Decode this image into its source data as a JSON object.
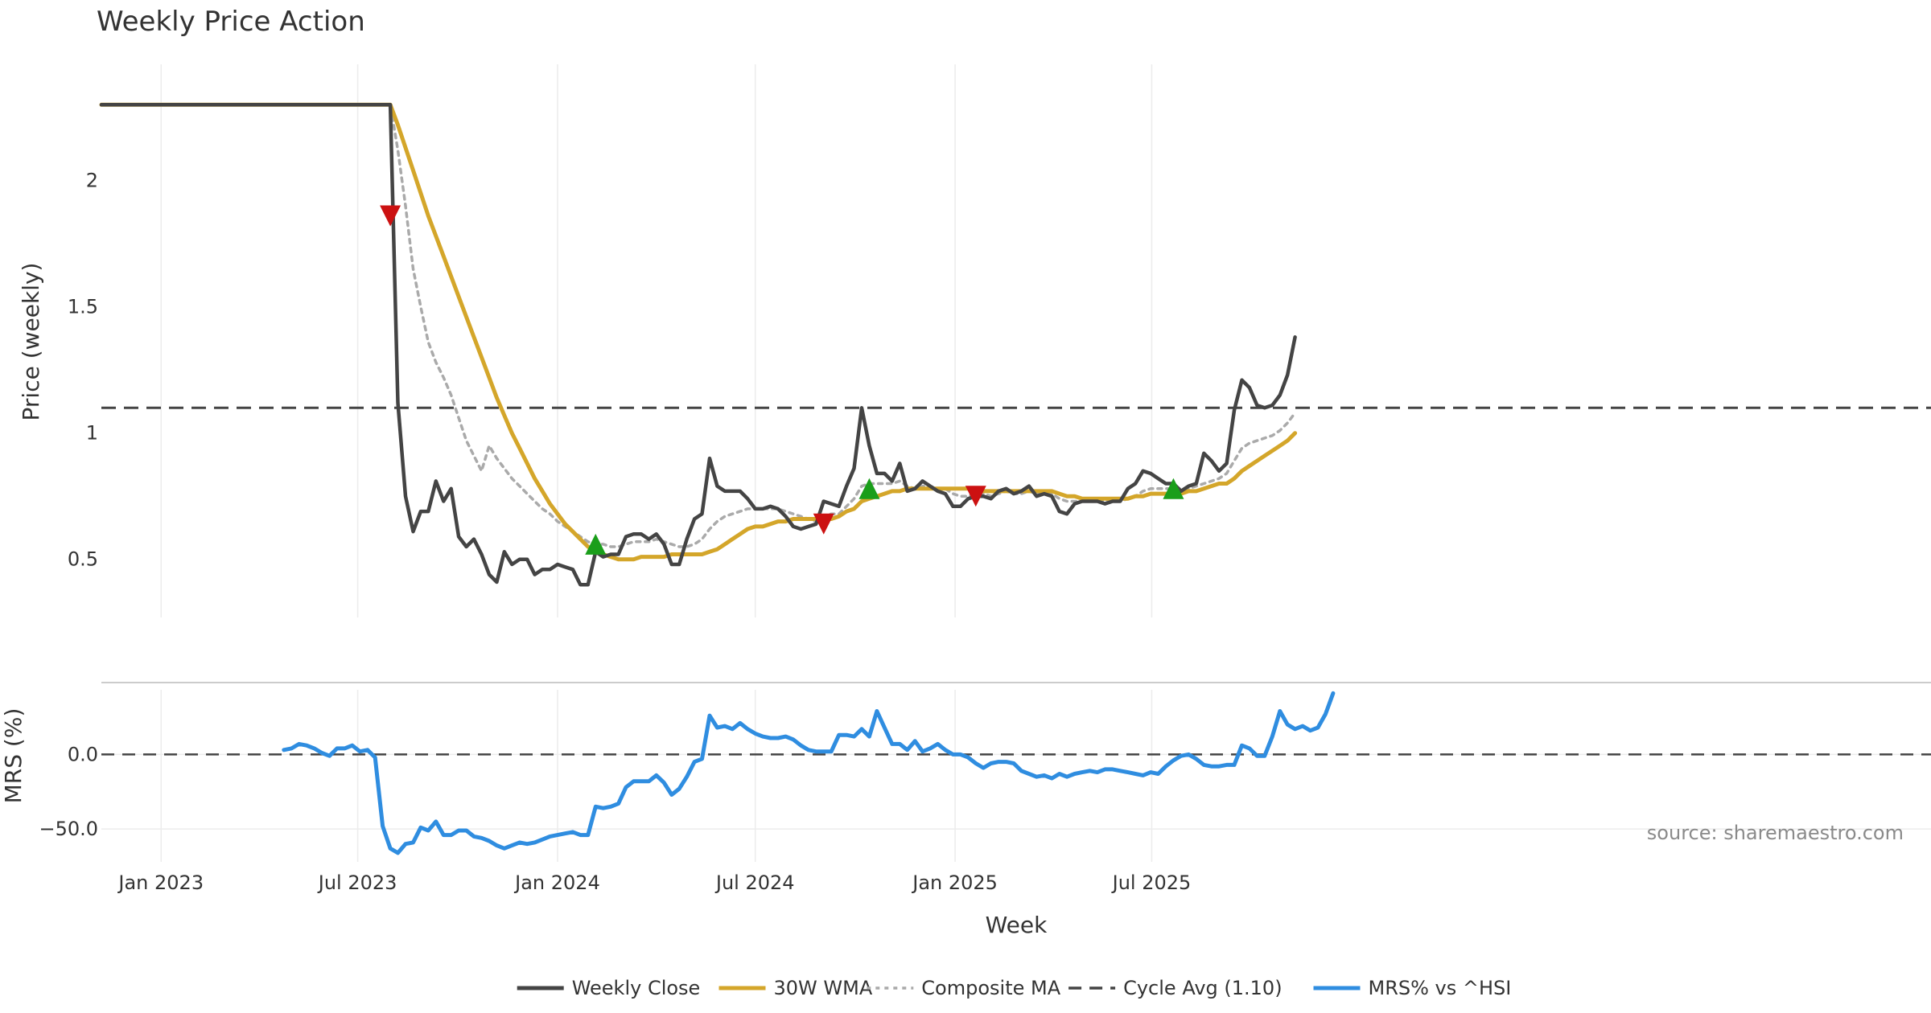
{
  "chart_data": [
    {
      "type": "line",
      "title": "Weekly Price Action",
      "ylabel": "Price (weekly)",
      "xlabel": "Week",
      "x_start": "2022-11-07",
      "x_step_days": 7,
      "ylim": [
        0.27,
        2.46
      ],
      "yticks": [
        0.5,
        1,
        1.5,
        2
      ],
      "ytick_labels": [
        "0.5",
        "1",
        "1.5",
        "2"
      ],
      "xticks": [
        {
          "date": "2023-01-01",
          "label": "Jan 2023"
        },
        {
          "date": "2023-07-01",
          "label": "Jul 2023"
        },
        {
          "date": "2024-01-01",
          "label": "Jan 2024"
        },
        {
          "date": "2024-07-01",
          "label": "Jul 2024"
        },
        {
          "date": "2025-01-01",
          "label": "Jan 2025"
        },
        {
          "date": "2025-07-01",
          "label": "Jul 2025"
        }
      ],
      "grid": true,
      "reference_line": {
        "name": "Cycle Avg (1.10)",
        "value": 1.1
      },
      "series": [
        {
          "name": "Weekly Close",
          "color": "#444444",
          "values": [
            2.3,
            2.3,
            2.3,
            2.3,
            2.3,
            2.3,
            2.3,
            2.3,
            2.3,
            2.3,
            2.3,
            2.3,
            2.3,
            2.3,
            2.3,
            2.3,
            2.3,
            2.3,
            2.3,
            2.3,
            2.3,
            2.3,
            2.3,
            2.3,
            2.3,
            2.3,
            2.3,
            2.3,
            2.3,
            2.3,
            2.3,
            2.3,
            2.3,
            2.3,
            2.3,
            2.3,
            2.3,
            2.3,
            2.3,
            1.12,
            0.75,
            0.61,
            0.69,
            0.69,
            0.81,
            0.73,
            0.78,
            0.59,
            0.55,
            0.58,
            0.52,
            0.44,
            0.41,
            0.53,
            0.48,
            0.5,
            0.5,
            0.44,
            0.46,
            0.46,
            0.48,
            0.47,
            0.46,
            0.4,
            0.4,
            0.53,
            0.51,
            0.52,
            0.52,
            0.59,
            0.6,
            0.6,
            0.58,
            0.6,
            0.56,
            0.48,
            0.48,
            0.58,
            0.66,
            0.68,
            0.9,
            0.79,
            0.77,
            0.77,
            0.77,
            0.74,
            0.7,
            0.7,
            0.71,
            0.7,
            0.67,
            0.63,
            0.62,
            0.63,
            0.64,
            0.73,
            0.72,
            0.71,
            0.79,
            0.86,
            1.1,
            0.95,
            0.84,
            0.84,
            0.81,
            0.88,
            0.77,
            0.78,
            0.81,
            0.79,
            0.77,
            0.76,
            0.71,
            0.71,
            0.74,
            0.75,
            0.75,
            0.74,
            0.77,
            0.78,
            0.76,
            0.77,
            0.79,
            0.75,
            0.76,
            0.75,
            0.69,
            0.68,
            0.72,
            0.73,
            0.73,
            0.73,
            0.72,
            0.73,
            0.73,
            0.78,
            0.8,
            0.85,
            0.84,
            0.82,
            0.8,
            0.8,
            0.77,
            0.79,
            0.8,
            0.92,
            0.89,
            0.85,
            0.88,
            1.09,
            1.21,
            1.18,
            1.11,
            1.1,
            1.11,
            1.15,
            1.23,
            1.38
          ]
        },
        {
          "name": "30W WMA",
          "color": "#d4a62a",
          "values": [
            2.3,
            2.3,
            2.3,
            2.3,
            2.3,
            2.3,
            2.3,
            2.3,
            2.3,
            2.3,
            2.3,
            2.3,
            2.3,
            2.3,
            2.3,
            2.3,
            2.3,
            2.3,
            2.3,
            2.3,
            2.3,
            2.3,
            2.3,
            2.3,
            2.3,
            2.3,
            2.3,
            2.3,
            2.3,
            2.3,
            2.3,
            2.3,
            2.3,
            2.3,
            2.3,
            2.3,
            2.3,
            2.3,
            2.3,
            2.22,
            2.13,
            2.04,
            1.95,
            1.86,
            1.78,
            1.7,
            1.62,
            1.54,
            1.46,
            1.38,
            1.3,
            1.22,
            1.14,
            1.07,
            1.0,
            0.94,
            0.88,
            0.82,
            0.77,
            0.72,
            0.68,
            0.64,
            0.61,
            0.58,
            0.55,
            0.53,
            0.52,
            0.51,
            0.5,
            0.5,
            0.5,
            0.51,
            0.51,
            0.51,
            0.51,
            0.52,
            0.52,
            0.52,
            0.52,
            0.52,
            0.53,
            0.54,
            0.56,
            0.58,
            0.6,
            0.62,
            0.63,
            0.63,
            0.64,
            0.65,
            0.65,
            0.66,
            0.66,
            0.66,
            0.66,
            0.66,
            0.66,
            0.67,
            0.69,
            0.7,
            0.73,
            0.74,
            0.75,
            0.76,
            0.77,
            0.77,
            0.78,
            0.78,
            0.78,
            0.78,
            0.78,
            0.78,
            0.78,
            0.78,
            0.78,
            0.77,
            0.77,
            0.77,
            0.77,
            0.77,
            0.77,
            0.77,
            0.77,
            0.77,
            0.77,
            0.77,
            0.76,
            0.75,
            0.75,
            0.74,
            0.74,
            0.74,
            0.74,
            0.74,
            0.74,
            0.74,
            0.75,
            0.75,
            0.76,
            0.76,
            0.76,
            0.76,
            0.76,
            0.77,
            0.77,
            0.78,
            0.79,
            0.8,
            0.8,
            0.82,
            0.85,
            0.87,
            0.89,
            0.91,
            0.93,
            0.95,
            0.97,
            1.0
          ]
        },
        {
          "name": "Composite MA",
          "color": "#aaaaaa",
          "values": [
            2.3,
            2.3,
            2.3,
            2.3,
            2.3,
            2.3,
            2.3,
            2.3,
            2.3,
            2.3,
            2.3,
            2.3,
            2.3,
            2.3,
            2.3,
            2.3,
            2.3,
            2.3,
            2.3,
            2.3,
            2.3,
            2.3,
            2.3,
            2.3,
            2.3,
            2.3,
            2.3,
            2.3,
            2.3,
            2.3,
            2.3,
            2.3,
            2.3,
            2.3,
            2.3,
            2.3,
            2.3,
            2.3,
            2.3,
            2.12,
            1.9,
            1.65,
            1.5,
            1.36,
            1.28,
            1.22,
            1.15,
            1.06,
            0.97,
            0.91,
            0.85,
            0.95,
            0.9,
            0.86,
            0.82,
            0.79,
            0.76,
            0.73,
            0.7,
            0.68,
            0.65,
            0.63,
            0.61,
            0.59,
            0.57,
            0.56,
            0.56,
            0.55,
            0.55,
            0.56,
            0.57,
            0.57,
            0.57,
            0.58,
            0.57,
            0.56,
            0.55,
            0.55,
            0.56,
            0.58,
            0.62,
            0.65,
            0.67,
            0.68,
            0.69,
            0.7,
            0.7,
            0.7,
            0.7,
            0.7,
            0.69,
            0.68,
            0.67,
            0.66,
            0.65,
            0.67,
            0.68,
            0.68,
            0.71,
            0.74,
            0.79,
            0.8,
            0.8,
            0.8,
            0.8,
            0.81,
            0.79,
            0.78,
            0.79,
            0.79,
            0.78,
            0.78,
            0.76,
            0.75,
            0.75,
            0.76,
            0.76,
            0.75,
            0.76,
            0.77,
            0.76,
            0.76,
            0.77,
            0.76,
            0.76,
            0.76,
            0.74,
            0.73,
            0.73,
            0.73,
            0.73,
            0.73,
            0.73,
            0.73,
            0.73,
            0.74,
            0.75,
            0.77,
            0.78,
            0.78,
            0.78,
            0.78,
            0.78,
            0.78,
            0.79,
            0.8,
            0.81,
            0.82,
            0.84,
            0.89,
            0.94,
            0.96,
            0.97,
            0.98,
            0.99,
            1.01,
            1.04,
            1.08
          ]
        }
      ],
      "markers": [
        {
          "type": "sell",
          "index": 38,
          "value": 1.86,
          "color": "#cc1111"
        },
        {
          "type": "buy",
          "index": 65,
          "value": 0.56,
          "color": "#1a9e1a"
        },
        {
          "type": "sell",
          "index": 95,
          "value": 0.64,
          "color": "#cc1111"
        },
        {
          "type": "buy",
          "index": 101,
          "value": 0.78,
          "color": "#1a9e1a"
        },
        {
          "type": "sell",
          "index": 115,
          "value": 0.75,
          "color": "#cc1111"
        },
        {
          "type": "buy",
          "index": 141,
          "value": 0.78,
          "color": "#1a9e1a"
        }
      ]
    },
    {
      "type": "line",
      "ylabel": "MRS (%)",
      "ylim": [
        -72,
        53
      ],
      "yticks": [
        0,
        -50
      ],
      "ytick_labels": [
        "0.0",
        "−50.0"
      ],
      "zero_line": true,
      "series": [
        {
          "name": "MRS% vs ^HSI",
          "color": "#2f8de0",
          "start_index": 24,
          "values": [
            3,
            4,
            7,
            6,
            4,
            1,
            -1,
            4,
            4,
            6,
            2,
            3,
            -2,
            -48,
            -63,
            -66,
            -60,
            -59,
            -49,
            -51,
            -45,
            -54,
            -54,
            -51,
            -51,
            -55,
            -56,
            -58,
            -61,
            -63,
            -61,
            -59,
            -60,
            -59,
            -57,
            -55,
            -54,
            -53,
            -52,
            -54,
            -54,
            -35,
            -36,
            -35,
            -33,
            -22,
            -18,
            -18,
            -18,
            -14,
            -19,
            -27,
            -23,
            -15,
            -5,
            -3,
            26,
            18,
            19,
            17,
            21,
            17,
            14,
            12,
            11,
            11,
            12,
            10,
            6,
            3,
            2,
            2,
            2,
            13,
            13,
            12,
            17,
            12,
            29,
            18,
            7,
            7,
            3,
            9,
            2,
            4,
            7,
            3,
            0,
            0,
            -2,
            -6,
            -9,
            -6,
            -5,
            -5,
            -6,
            -11,
            -13,
            -15,
            -14,
            -16,
            -13,
            -15,
            -13,
            -12,
            -11,
            -12,
            -10,
            -10,
            -11,
            -12,
            -13,
            -14,
            -12,
            -13,
            -8,
            -4,
            -1,
            0,
            -3,
            -7,
            -8,
            -8,
            -7,
            -7,
            6,
            4,
            -1,
            -1,
            12,
            29,
            20,
            17,
            19,
            16,
            18,
            27,
            41
          ]
        }
      ]
    }
  ],
  "legend": {
    "placement": "bottom-center",
    "items": [
      {
        "label": "Weekly Close",
        "color": "#444444",
        "style": "solid"
      },
      {
        "label": "30W WMA",
        "color": "#d4a62a",
        "style": "solid"
      },
      {
        "label": "Composite MA",
        "color": "#aaaaaa",
        "style": "dotted"
      },
      {
        "label": "Cycle Avg (1.10)",
        "color": "#444444",
        "style": "dashed"
      },
      {
        "label": "MRS% vs ^HSI",
        "color": "#2f8de0",
        "style": "solid"
      }
    ]
  },
  "source_label": "source: sharemaestro.com"
}
